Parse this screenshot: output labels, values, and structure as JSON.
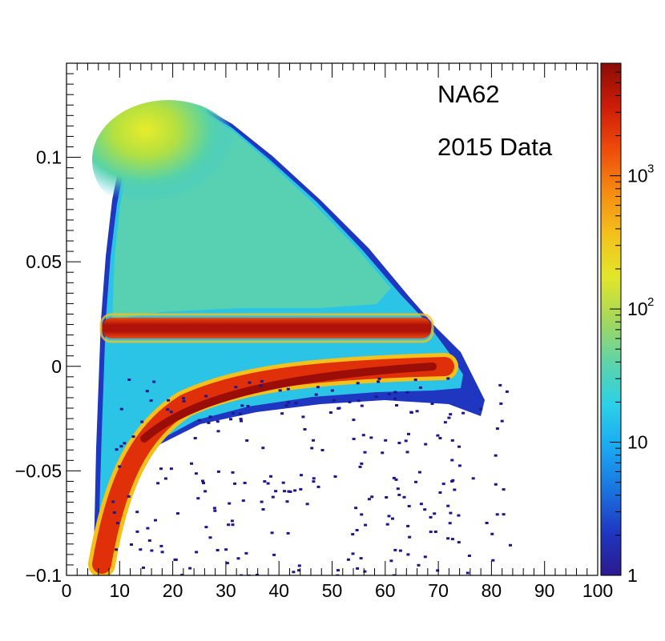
{
  "chart_data": {
    "type": "heatmap",
    "title": "",
    "xlabel": "",
    "ylabel": "",
    "xlim": [
      0,
      100
    ],
    "ylim": [
      -0.1,
      0.145
    ],
    "x_ticks": [
      0,
      10,
      20,
      30,
      40,
      50,
      60,
      70,
      80,
      90,
      100
    ],
    "x_tick_labels": [
      "0",
      "10",
      "20",
      "30",
      "40",
      "50",
      "60",
      "70",
      "80",
      "90",
      "100"
    ],
    "y_ticks": [
      -0.1,
      -0.05,
      0,
      0.05,
      0.1
    ],
    "y_tick_labels": [
      "−0.1",
      "−0.05",
      "0",
      "0.05",
      "0.1"
    ],
    "annotations": [
      "NA62",
      "2015 Data"
    ],
    "colorbar": {
      "scale": "log",
      "range": [
        1,
        7000
      ],
      "ticks": [
        {
          "value": 1,
          "label": "1"
        },
        {
          "value": 10,
          "label": "10"
        },
        {
          "value": 100,
          "base": "10",
          "exponent": "2"
        },
        {
          "value": 1000,
          "base": "10",
          "exponent": "3"
        }
      ],
      "palette": [
        "#2b1a8f",
        "#1f36c0",
        "#1a74e0",
        "#1ba9f2",
        "#2bd0e8",
        "#5fd4a8",
        "#a6d85a",
        "#e2e62a",
        "#f4c01c",
        "#f58a12",
        "#ee4a0c",
        "#cc1c08",
        "#8a0d06"
      ]
    },
    "features": [
      {
        "name": "broad-region",
        "description": "diffuse kinematic region",
        "x_range": [
          6,
          72
        ],
        "y_peak": 0.124,
        "peak_x": 22,
        "level": 150
      },
      {
        "name": "horizontal-band",
        "description": "narrow high-density band",
        "x_range": [
          7,
          68
        ],
        "y": 0.019,
        "level": 7000
      },
      {
        "name": "curved-band",
        "description": "curved high-density band",
        "x_range": [
          6,
          73
        ],
        "y_at_end": 0.0,
        "y_at_start": -0.09,
        "level": 5000
      }
    ]
  }
}
